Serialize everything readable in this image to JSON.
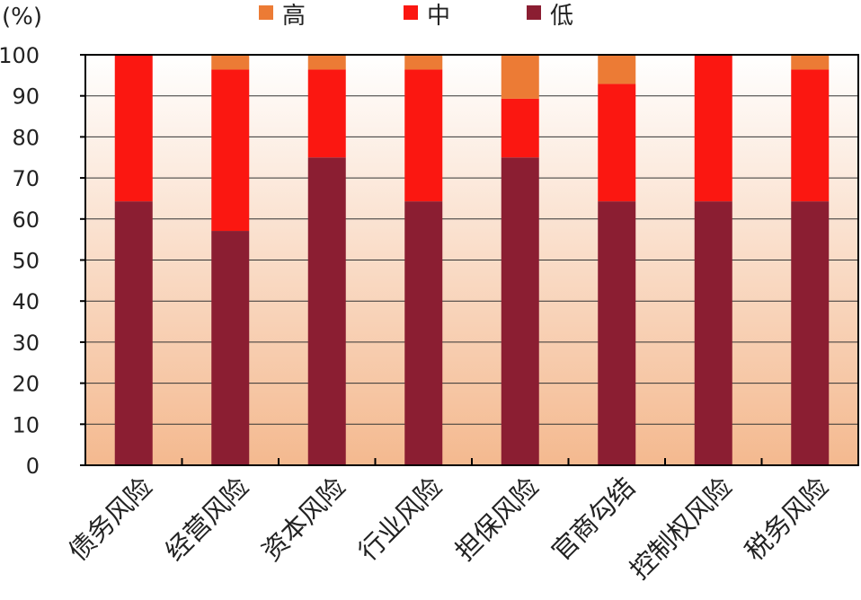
{
  "chart_data": {
    "type": "bar",
    "stacked": true,
    "unit_label": "(%)",
    "categories": [
      "债务风险",
      "经营风险",
      "资本风险",
      "行业风险",
      "担保风险",
      "官商勾结",
      "控制权风险",
      "税务风险"
    ],
    "series": [
      {
        "name": "低",
        "color": "#8b1e32",
        "values": [
          64.3,
          57.1,
          75.0,
          64.3,
          75.0,
          64.3,
          64.3,
          64.3
        ]
      },
      {
        "name": "中",
        "color": "#fb1711",
        "values": [
          35.7,
          39.3,
          21.4,
          32.1,
          14.3,
          28.6,
          35.7,
          32.1
        ]
      },
      {
        "name": "高",
        "color": "#ec7b35",
        "values": [
          0.0,
          3.6,
          3.6,
          3.6,
          10.7,
          7.1,
          0.0,
          3.6
        ]
      }
    ],
    "legend_order": [
      "高",
      "中",
      "低"
    ],
    "legend_position": "top",
    "y_ticks": [
      "0",
      "10",
      "20",
      "30",
      "40",
      "50",
      "60",
      "70",
      "80",
      "90",
      "100"
    ],
    "ylim": [
      0,
      100
    ],
    "grid": true,
    "background": "gradient white-to-peach",
    "background_colors": [
      "#ffffff",
      "#f4b98f"
    ]
  }
}
